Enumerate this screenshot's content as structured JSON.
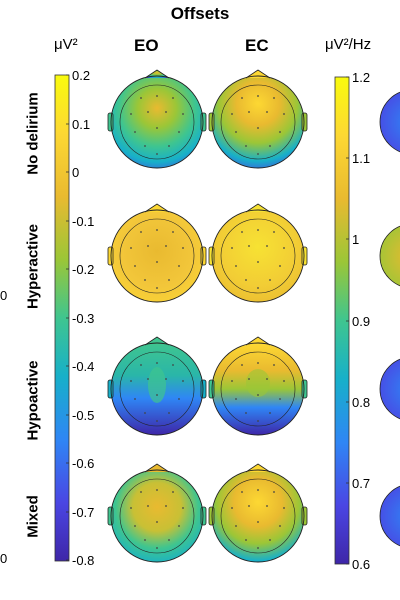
{
  "figure": {
    "title": "Offsets",
    "left_colorbar_unit": "μV²",
    "right_colorbar_unit": "μV²/Hz",
    "columns": [
      "EO",
      "EC"
    ],
    "rows": [
      "No delirium",
      "Hyperactive",
      "Hypoactive",
      "Mixed"
    ],
    "left_ticks": [
      "0.2",
      "0.1",
      "0",
      "-0.1",
      "-0.2",
      "-0.3",
      "-0.4",
      "-0.5",
      "-0.6",
      "-0.7",
      "-0.8"
    ],
    "right_ticks": [
      "1.2",
      "1.1",
      "1",
      "0.9",
      "0.8",
      "0.7",
      "0.6"
    ],
    "edge_left_labels": [
      "0",
      "0"
    ],
    "colormap": [
      "#3e26a8",
      "#4a46e3",
      "#2f86f5",
      "#17b0c9",
      "#3fc58f",
      "#9bc637",
      "#e9ba30",
      "#fdd833",
      "#f9fb0e"
    ]
  }
}
